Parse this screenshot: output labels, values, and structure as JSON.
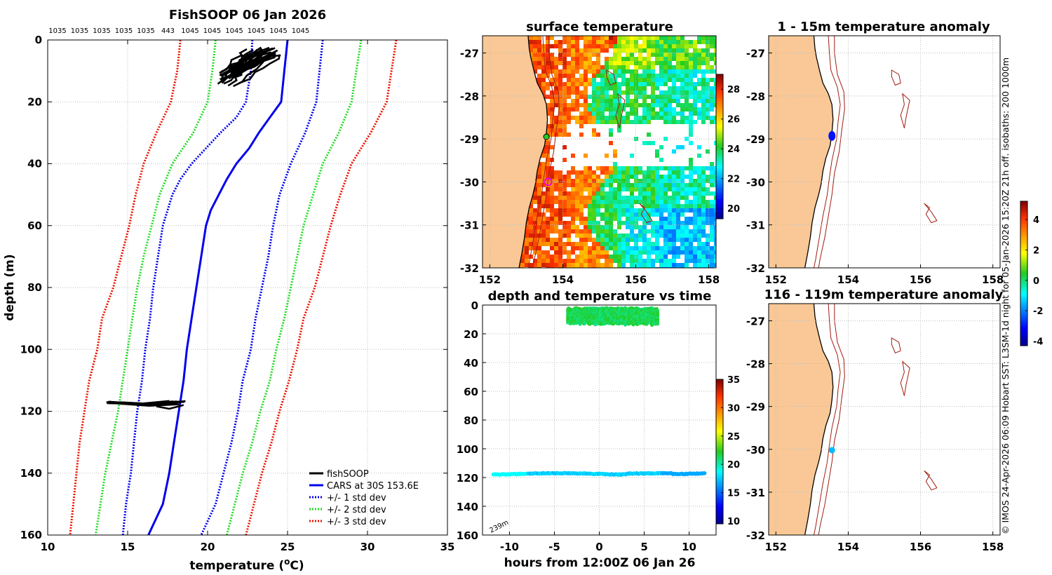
{
  "colors": {
    "fishsoop": "#000000",
    "cars": "#0000ee",
    "std1": "#0000ee",
    "std2": "#22dd22",
    "std3": "#ee1100",
    "land": "#f9c896",
    "coast": "#000000",
    "isobath": "#a01c10",
    "marker": "#ee00ee"
  },
  "chart_data": [
    {
      "id": "profile",
      "type": "line",
      "title": "FishSOOP 06 Jan 2026",
      "xlabel": "temperature (oC)",
      "xlabel_main": "temperature (",
      "xlabel_sup": "o",
      "xlabel_end": "C)",
      "ylabel": "depth (m)",
      "xlim": [
        10,
        35
      ],
      "ylim": [
        0,
        160
      ],
      "y_reversed": true,
      "xticks": [
        10,
        15,
        20,
        25,
        30,
        35
      ],
      "yticks": [
        0,
        20,
        40,
        60,
        80,
        100,
        120,
        140,
        160
      ],
      "top_labels": [
        "1035",
        "1035",
        "1035",
        "1035",
        "1035",
        "443",
        "1045",
        "1045",
        "1045",
        "1045",
        "1045",
        "1045"
      ],
      "legend_position": "bottom-right",
      "legend": [
        "fishSOOP",
        "CARS at 30S 153.6E",
        "+/- 1 std dev",
        "+/- 2 std dev",
        "+/- 3 std dev"
      ],
      "series": [
        {
          "name": "CARS at 30S 153.6E",
          "style": "solid",
          "color_key": "cars",
          "points": [
            [
              25.0,
              0
            ],
            [
              24.9,
              5
            ],
            [
              24.8,
              10
            ],
            [
              24.6,
              20
            ],
            [
              23.9,
              25
            ],
            [
              23.2,
              30
            ],
            [
              22.6,
              35
            ],
            [
              21.8,
              40
            ],
            [
              21.2,
              45
            ],
            [
              20.7,
              50
            ],
            [
              20.2,
              55
            ],
            [
              19.9,
              60
            ],
            [
              19.6,
              70
            ],
            [
              19.3,
              80
            ],
            [
              19.0,
              90
            ],
            [
              18.7,
              100
            ],
            [
              18.5,
              110
            ],
            [
              18.2,
              120
            ],
            [
              17.9,
              130
            ],
            [
              17.6,
              140
            ],
            [
              17.2,
              150
            ],
            [
              16.3,
              160
            ]
          ]
        },
        {
          "name": "+1 std dev",
          "style": "dotted",
          "color_key": "std1",
          "points": [
            [
              27.2,
              0
            ],
            [
              27.0,
              10
            ],
            [
              26.8,
              20
            ],
            [
              26.1,
              30
            ],
            [
              25.2,
              40
            ],
            [
              24.5,
              50
            ],
            [
              24.1,
              60
            ],
            [
              23.8,
              70
            ],
            [
              23.4,
              80
            ],
            [
              23.0,
              90
            ],
            [
              22.7,
              100
            ],
            [
              22.2,
              110
            ],
            [
              21.9,
              120
            ],
            [
              21.5,
              130
            ],
            [
              21.0,
              140
            ],
            [
              20.5,
              150
            ],
            [
              19.6,
              160
            ]
          ]
        },
        {
          "name": "-1 std dev",
          "style": "dotted",
          "color_key": "std1",
          "points": [
            [
              22.8,
              0
            ],
            [
              22.7,
              10
            ],
            [
              22.4,
              20
            ],
            [
              21.8,
              25
            ],
            [
              20.8,
              30
            ],
            [
              19.9,
              35
            ],
            [
              19.0,
              40
            ],
            [
              18.3,
              45
            ],
            [
              17.8,
              50
            ],
            [
              17.5,
              55
            ],
            [
              17.2,
              60
            ],
            [
              16.9,
              70
            ],
            [
              16.6,
              80
            ],
            [
              16.4,
              90
            ],
            [
              16.1,
              100
            ],
            [
              15.9,
              110
            ],
            [
              15.6,
              120
            ],
            [
              15.4,
              130
            ],
            [
              15.2,
              140
            ],
            [
              14.9,
              150
            ],
            [
              14.7,
              160
            ]
          ]
        },
        {
          "name": "+2 std dev",
          "style": "dotted",
          "color_key": "std2",
          "points": [
            [
              29.6,
              0
            ],
            [
              29.3,
              10
            ],
            [
              29.0,
              20
            ],
            [
              28.2,
              30
            ],
            [
              27.2,
              40
            ],
            [
              26.6,
              50
            ],
            [
              26.0,
              60
            ],
            [
              25.6,
              70
            ],
            [
              25.2,
              80
            ],
            [
              24.8,
              90
            ],
            [
              24.3,
              100
            ],
            [
              23.9,
              110
            ],
            [
              23.3,
              120
            ],
            [
              22.8,
              130
            ],
            [
              22.2,
              140
            ],
            [
              21.7,
              150
            ],
            [
              21.2,
              160
            ]
          ]
        },
        {
          "name": "-2 std dev",
          "style": "dotted",
          "color_key": "std2",
          "points": [
            [
              20.5,
              0
            ],
            [
              20.3,
              10
            ],
            [
              20.0,
              20
            ],
            [
              19.1,
              30
            ],
            [
              17.8,
              40
            ],
            [
              17.0,
              50
            ],
            [
              16.5,
              60
            ],
            [
              16.0,
              70
            ],
            [
              15.6,
              80
            ],
            [
              15.3,
              90
            ],
            [
              15.0,
              100
            ],
            [
              14.7,
              110
            ],
            [
              14.4,
              120
            ],
            [
              14.0,
              130
            ],
            [
              13.6,
              140
            ],
            [
              13.3,
              150
            ],
            [
              13.0,
              160
            ]
          ]
        },
        {
          "name": "+3 std dev",
          "style": "dotted",
          "color_key": "std3",
          "points": [
            [
              31.8,
              0
            ],
            [
              31.5,
              10
            ],
            [
              31.2,
              20
            ],
            [
              30.2,
              30
            ],
            [
              29.0,
              40
            ],
            [
              28.3,
              50
            ],
            [
              27.7,
              60
            ],
            [
              27.2,
              70
            ],
            [
              26.7,
              80
            ],
            [
              26.0,
              90
            ],
            [
              25.6,
              100
            ],
            [
              25.1,
              110
            ],
            [
              24.5,
              120
            ],
            [
              24.0,
              130
            ],
            [
              23.4,
              140
            ],
            [
              22.9,
              150
            ],
            [
              22.4,
              160
            ]
          ]
        },
        {
          "name": "-3 std dev",
          "style": "dotted",
          "color_key": "std3",
          "points": [
            [
              18.3,
              0
            ],
            [
              18.1,
              10
            ],
            [
              17.7,
              20
            ],
            [
              16.8,
              30
            ],
            [
              16.0,
              40
            ],
            [
              15.5,
              50
            ],
            [
              15.1,
              60
            ],
            [
              14.6,
              70
            ],
            [
              14.1,
              80
            ],
            [
              13.4,
              90
            ],
            [
              13.1,
              100
            ],
            [
              12.6,
              110
            ],
            [
              12.3,
              120
            ],
            [
              12.0,
              130
            ],
            [
              11.8,
              140
            ],
            [
              11.6,
              150
            ],
            [
              11.4,
              160
            ]
          ]
        }
      ],
      "fishsoop_upper": {
        "temp_range": [
          20.5,
          24.5
        ],
        "depth_range": [
          2,
          15
        ]
      },
      "fishsoop_lower": {
        "temp_range": [
          13.5,
          18.7
        ],
        "depth_range": [
          116,
          119
        ]
      }
    },
    {
      "id": "sst",
      "type": "heatmap",
      "title": "surface temperature",
      "xlim": [
        151.8,
        158.2
      ],
      "ylim": [
        -32,
        -26.6
      ],
      "xticks": [
        152,
        154,
        156,
        158
      ],
      "yticks": [
        -27,
        -28,
        -29,
        -30,
        -31,
        -32
      ],
      "colorbar": {
        "min": 19.3,
        "max": 29.0,
        "ticks": [
          20,
          22,
          24,
          26,
          28
        ]
      },
      "station_marker": {
        "lon": 153.6,
        "lat": -30.0
      }
    },
    {
      "id": "anomaly_shallow",
      "type": "scatter",
      "title": "1 - 15m temperature anomaly",
      "xlim": [
        151.8,
        158.2
      ],
      "ylim": [
        -32,
        -26.6
      ],
      "xticks": [
        152,
        154,
        156,
        158
      ],
      "yticks": [
        -27,
        -28,
        -29,
        -30,
        -31,
        -32
      ],
      "points": [
        {
          "lon": 153.55,
          "lat": -28.93,
          "anomaly": -3.0
        }
      ]
    },
    {
      "id": "anomaly_deep",
      "type": "scatter",
      "title": "116 - 119m temperature anomaly",
      "xlim": [
        151.8,
        158.2
      ],
      "ylim": [
        -32,
        -26.6
      ],
      "xticks": [
        152,
        154,
        156,
        158
      ],
      "yticks": [
        -27,
        -28,
        -29,
        -30,
        -31,
        -32
      ],
      "points": [
        {
          "lon": 153.55,
          "lat": -30.02,
          "anomaly": -1.5
        }
      ],
      "colorbar": {
        "min": -4.3,
        "max": 5.2,
        "ticks": [
          -4,
          -2,
          0,
          2,
          4
        ]
      }
    },
    {
      "id": "timeseries",
      "type": "scatter",
      "title": "depth and temperature vs time",
      "xlabel": "hours from 12:00Z 06 Jan 26",
      "xlim": [
        -13,
        13
      ],
      "ylim": [
        0,
        160
      ],
      "y_reversed": true,
      "xticks": [
        -10,
        -5,
        0,
        5,
        10
      ],
      "yticks": [
        0,
        20,
        40,
        60,
        80,
        100,
        120,
        140,
        160
      ],
      "annotation": "239m",
      "colorbar": {
        "min": 9.5,
        "max": 35.0,
        "ticks": [
          10,
          15,
          20,
          25,
          30,
          35
        ]
      },
      "shallow_band": {
        "x_range": [
          -3.5,
          6.5
        ],
        "depth_range": [
          2,
          14
        ],
        "temp": 21.5
      },
      "deep_band": {
        "x_range": [
          -11.8,
          11.8
        ],
        "depth_range": [
          116,
          119
        ],
        "temp_range": [
          16.5,
          19.0
        ]
      }
    }
  ],
  "side_text": "© IMOS 24-Apr-2026 06:09 Hobart  SST: L3SM-1d night for 05-Jan-2026 15:20Z 21h off.  isobaths: 200  1000m"
}
